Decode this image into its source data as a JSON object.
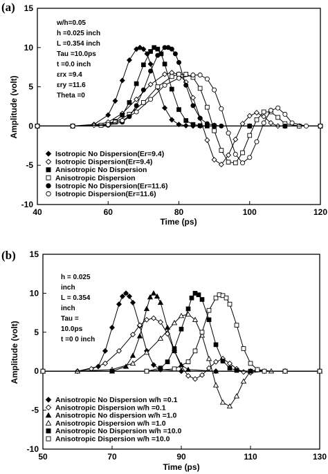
{
  "chart_data": [
    {
      "panel_label": "(a)",
      "type": "line",
      "xlabel": "Time (ps)",
      "ylabel": "Amplitude (volt)",
      "xlim": [
        40,
        120
      ],
      "ylim": [
        -10,
        15
      ],
      "x_ticks": [
        "40",
        "60",
        "80",
        "100",
        "120"
      ],
      "y_ticks": [
        "15",
        "10",
        "5",
        "0",
        "-5",
        "-10"
      ],
      "annotation_lines": [
        "w/h=0.05",
        "h =0.025 inch",
        "L =0.354 inch",
        "Tau =10.0ps",
        "t =0.0 inch",
        "εrx =9.4",
        "εry =11.6",
        "Theta =0"
      ],
      "grid": false,
      "legend_position": "lower-left",
      "series": [
        {
          "name": "Isotropic No Dispersion(Er=9.4)",
          "marker": "diamond",
          "fill": "filled",
          "x": [
            40,
            50,
            56,
            60,
            62,
            64,
            66,
            68,
            69,
            70,
            71,
            72,
            74,
            76,
            78,
            80,
            82,
            84,
            86,
            90,
            100,
            110,
            120
          ],
          "y": [
            0,
            0,
            0.2,
            1.4,
            3.2,
            5.8,
            8.4,
            9.8,
            10,
            9.8,
            9.2,
            7.9,
            4.9,
            2.3,
            0.8,
            0.2,
            0.05,
            0,
            0,
            0,
            0,
            0,
            0
          ]
        },
        {
          "name": "Isotropic Dispersion(Er=9.4)",
          "marker": "diamond",
          "fill": "open",
          "x": [
            40,
            50,
            56,
            60,
            64,
            68,
            72,
            76,
            78,
            80,
            82,
            84,
            86,
            88,
            90,
            92,
            94,
            96,
            98,
            100,
            102,
            104,
            106,
            108,
            110,
            114,
            120
          ],
          "y": [
            0,
            0,
            0.1,
            0.5,
            1.6,
            3.4,
            5.3,
            6.6,
            6.8,
            6.6,
            5.6,
            3.6,
            1.0,
            -1.8,
            -4.3,
            -4.9,
            -3.7,
            -1.7,
            0.3,
            1.3,
            1.7,
            1.2,
            0.4,
            0,
            0,
            0,
            0
          ]
        },
        {
          "name": "Anisotropic No Dispersion",
          "marker": "square",
          "fill": "filled",
          "x": [
            40,
            50,
            58,
            62,
            64,
            66,
            68,
            70,
            72,
            73,
            74,
            75,
            76,
            78,
            80,
            82,
            84,
            86,
            88,
            90,
            100,
            110,
            120
          ],
          "y": [
            0,
            0,
            0.1,
            0.6,
            1.4,
            3.0,
            5.4,
            7.8,
            9.5,
            10,
            9.8,
            9.2,
            7.9,
            4.7,
            2.1,
            0.7,
            0.2,
            0.05,
            0,
            0,
            0,
            0,
            0
          ]
        },
        {
          "name": "Anisotropic Dispersion",
          "marker": "square",
          "fill": "open",
          "x": [
            40,
            50,
            58,
            62,
            66,
            70,
            74,
            78,
            80,
            82,
            84,
            86,
            88,
            90,
            92,
            94,
            96,
            98,
            100,
            102,
            104,
            106,
            108,
            110,
            114,
            120
          ],
          "y": [
            0,
            0,
            0.1,
            0.5,
            1.5,
            3.0,
            5.0,
            6.3,
            6.6,
            6.6,
            6.2,
            4.8,
            2.4,
            -0.6,
            -3.1,
            -4.6,
            -4.7,
            -3.4,
            -1.2,
            0.8,
            1.8,
            1.8,
            1.1,
            0.3,
            0,
            0
          ]
        },
        {
          "name": "Isotropic No Dispersion(Er=11.6)",
          "marker": "circle",
          "fill": "filled",
          "x": [
            40,
            50,
            60,
            64,
            66,
            68,
            70,
            72,
            74,
            76,
            77,
            78,
            79,
            80,
            82,
            84,
            86,
            88,
            90,
            92,
            100,
            110,
            120
          ],
          "y": [
            0,
            0,
            0.1,
            0.5,
            1.2,
            2.6,
            4.6,
            7.0,
            9.0,
            10,
            10,
            9.8,
            9.2,
            8.1,
            5.2,
            2.6,
            1.0,
            0.3,
            0.1,
            0,
            0,
            0,
            0
          ]
        },
        {
          "name": "Isotropic Dispersion(Er=11.6)",
          "marker": "circle",
          "fill": "open",
          "x": [
            40,
            50,
            60,
            64,
            68,
            72,
            76,
            80,
            84,
            86,
            88,
            90,
            92,
            94,
            96,
            98,
            100,
            102,
            104,
            106,
            108,
            110,
            112,
            116,
            120
          ],
          "y": [
            0,
            0,
            0.2,
            0.7,
            1.8,
            3.4,
            5.2,
            6.1,
            6.5,
            6.5,
            6.0,
            4.6,
            2.2,
            -0.9,
            -3.6,
            -4.7,
            -4.0,
            -2.0,
            0.4,
            2.0,
            2.3,
            1.5,
            0.4,
            0,
            0
          ]
        }
      ]
    },
    {
      "panel_label": "(b)",
      "type": "line",
      "xlabel": "Time (ps)",
      "ylabel": "Amplitude (volt)",
      "xlim": [
        50,
        130
      ],
      "ylim": [
        -10,
        15
      ],
      "x_ticks": [
        "50",
        "70",
        "90",
        "110",
        "130"
      ],
      "y_ticks": [
        "15",
        "10",
        "5",
        "0",
        "-5",
        "-10"
      ],
      "annotation_lines": [
        "h = 0.025",
        "inch",
        "L = 0.354",
        "inch",
        "Tau =",
        "10.0ps",
        "t =0 0 inch"
      ],
      "grid": false,
      "legend_position": "lower-left",
      "series": [
        {
          "name": "Anisotropic No Dispersion w/h =0.1",
          "marker": "diamond",
          "fill": "filled",
          "x": [
            50,
            60,
            66,
            68,
            70,
            72,
            73,
            74,
            75,
            76,
            78,
            80,
            82,
            84,
            90,
            100,
            110,
            120,
            130
          ],
          "y": [
            0,
            0,
            0.6,
            2.6,
            5.6,
            8.6,
            9.6,
            10,
            9.6,
            8.8,
            5.8,
            2.6,
            0.8,
            0.2,
            0,
            0,
            0,
            0,
            0
          ]
        },
        {
          "name": "Anisotropic Dispersion w/h =0.1",
          "marker": "diamond",
          "fill": "open",
          "x": [
            50,
            60,
            64,
            68,
            72,
            76,
            78,
            80,
            82,
            84,
            86,
            88,
            90,
            92,
            94,
            96,
            98,
            100,
            102,
            104,
            106,
            108,
            110,
            114,
            120,
            130
          ],
          "y": [
            0,
            0,
            0.3,
            1.0,
            2.6,
            4.7,
            5.9,
            6.6,
            6.8,
            6.3,
            4.8,
            2.6,
            0.6,
            -0.6,
            -1.0,
            -0.5,
            0.4,
            1.2,
            1.6,
            1.0,
            0.3,
            -0.1,
            -0.2,
            0,
            0,
            0
          ]
        },
        {
          "name": "Anisotropic No dispersion w/h =1.0",
          "marker": "triangle",
          "fill": "filled",
          "x": [
            50,
            60,
            70,
            74,
            76,
            78,
            80,
            81,
            82,
            83,
            84,
            86,
            88,
            90,
            92,
            100,
            110,
            120,
            130
          ],
          "y": [
            0,
            0,
            0,
            0.6,
            2.0,
            4.5,
            8.0,
            9.5,
            10,
            9.6,
            8.8,
            5.6,
            2.6,
            0.8,
            0.2,
            0,
            0,
            0,
            0
          ]
        },
        {
          "name": "Anisotropic Dispersion w/h =1.0",
          "marker": "triangle",
          "fill": "open",
          "x": [
            50,
            60,
            70,
            76,
            80,
            84,
            88,
            90,
            92,
            94,
            96,
            98,
            100,
            102,
            104,
            106,
            108,
            110,
            112,
            116,
            120,
            130
          ],
          "y": [
            0,
            0,
            0.2,
            1.0,
            2.4,
            4.2,
            6.2,
            7.1,
            7.3,
            6.6,
            4.6,
            1.6,
            -1.8,
            -4.0,
            -4.5,
            -3.2,
            -1.3,
            0,
            0.2,
            0,
            0,
            0
          ]
        },
        {
          "name": "Anisotropic No Dispersion w/h =10.0",
          "marker": "square",
          "fill": "filled",
          "x": [
            50,
            70,
            80,
            84,
            86,
            88,
            90,
            92,
            93,
            94,
            95,
            96,
            98,
            100,
            102,
            104,
            106,
            110,
            120,
            130
          ],
          "y": [
            0,
            0,
            0,
            0.4,
            1.2,
            2.9,
            5.4,
            8.0,
            9.4,
            10,
            9.8,
            9.2,
            6.6,
            3.4,
            1.3,
            0.4,
            0.1,
            0,
            0,
            0
          ]
        },
        {
          "name": "Anisotropic Dispersion w/h =10.0",
          "marker": "square",
          "fill": "open",
          "x": [
            50,
            80,
            88,
            92,
            94,
            96,
            98,
            100,
            101,
            102,
            103,
            104,
            106,
            108,
            110,
            112,
            114,
            120,
            130
          ],
          "y": [
            0,
            0,
            0.3,
            1.2,
            2.6,
            5.0,
            7.8,
            9.4,
            9.8,
            9.7,
            9.4,
            8.6,
            5.9,
            2.9,
            1.0,
            0.2,
            0,
            0,
            0
          ]
        }
      ]
    }
  ]
}
